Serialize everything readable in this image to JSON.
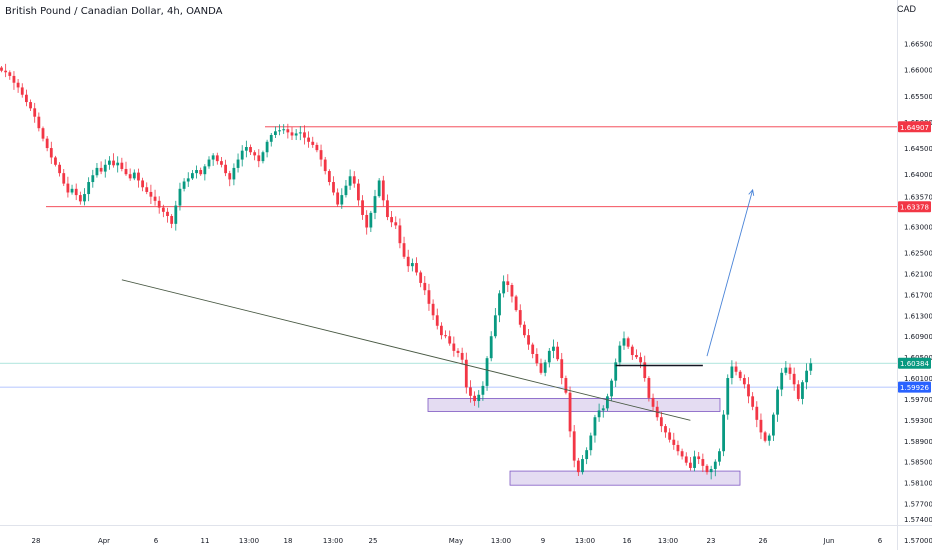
{
  "header": {
    "title": "British Pound / Canadian Dollar, 4h, OANDA",
    "currency": "CAD"
  },
  "chart_data": {
    "type": "candlestick",
    "symbol": "GBPCAD",
    "interval": "4h",
    "ylim": [
      1.5725,
      1.6695
    ],
    "y_ticks": [
      "1.66500",
      "1.66000",
      "1.65500",
      "1.65000",
      "1.64500",
      "1.64000",
      "1.63570",
      "1.63000",
      "1.62500",
      "1.62100",
      "1.61700",
      "1.61300",
      "1.60900",
      "1.60500",
      "1.60100",
      "1.59700",
      "1.59300",
      "1.58900",
      "1.58500",
      "1.58100",
      "1.57700",
      "1.57400",
      "1.57000"
    ],
    "x_ticks": [
      "28",
      "Apr",
      "6",
      "11",
      "13:00",
      "18",
      "13:00",
      "25",
      "May",
      "13:00",
      "9",
      "13:00",
      "16",
      "13:00",
      "23",
      "26",
      "Jun",
      "6"
    ],
    "price_levels": [
      {
        "value": 1.64907,
        "label": "1.64907",
        "color": "#f23645"
      },
      {
        "value": 1.63378,
        "label": "1.63378",
        "color": "#f23645"
      },
      {
        "value": 1.60384,
        "label": "1.60384",
        "color": "#089981"
      },
      {
        "value": 1.59926,
        "label": "1.59926",
        "color": "#2962ff"
      }
    ],
    "zones": [
      {
        "from": 1.5946,
        "to": 1.5971
      },
      {
        "from": 1.5805,
        "to": 1.5832
      }
    ],
    "annotations": [
      {
        "type": "trendline",
        "from": [
          29,
          1.6198
        ],
        "to": [
          166,
          1.5929
        ],
        "color": "#4a5a45"
      },
      {
        "type": "horizontal_segment",
        "from": [
          148,
          1.6034
        ],
        "to": [
          169,
          1.6034
        ],
        "color": "#131722"
      },
      {
        "type": "arrow",
        "from": [
          170,
          1.6052
        ],
        "to": [
          181,
          1.637
        ],
        "color": "#4a84d8"
      }
    ],
    "close_path": [
      1.6598,
      1.6595,
      1.6588,
      1.6575,
      1.6566,
      1.6552,
      1.6538,
      1.6526,
      1.651,
      1.6488,
      1.6468,
      1.645,
      1.6432,
      1.6418,
      1.6402,
      1.6382,
      1.6365,
      1.6372,
      1.636,
      1.6348,
      1.6362,
      1.6385,
      1.6398,
      1.6412,
      1.6405,
      1.6418,
      1.6426,
      1.6417,
      1.6422,
      1.641,
      1.64,
      1.6392,
      1.6403,
      1.6388,
      1.6375,
      1.6366,
      1.6357,
      1.6349,
      1.6336,
      1.6328,
      1.632,
      1.6305,
      1.634,
      1.6372,
      1.6386,
      1.6392,
      1.6402,
      1.6408,
      1.64,
      1.6415,
      1.6428,
      1.6436,
      1.6425,
      1.6418,
      1.6402,
      1.639,
      1.6412,
      1.6428,
      1.6445,
      1.6452,
      1.6442,
      1.6436,
      1.6425,
      1.6442,
      1.6462,
      1.6475,
      1.6482,
      1.6484,
      1.6486,
      1.648,
      1.6474,
      1.6478,
      1.648,
      1.647,
      1.6462,
      1.6456,
      1.6446,
      1.6428,
      1.6406,
      1.6385,
      1.6365,
      1.6342,
      1.636,
      1.6378,
      1.6396,
      1.6382,
      1.635,
      1.6322,
      1.6298,
      1.6326,
      1.6358,
      1.6388,
      1.635,
      1.6318,
      1.6308,
      1.6302,
      1.6268,
      1.6242,
      1.6224,
      1.623,
      1.6212,
      1.6192,
      1.6178,
      1.6152,
      1.613,
      1.611,
      1.6092,
      1.609,
      1.6076,
      1.6062,
      1.6058,
      1.6045,
      1.5992,
      1.5976,
      1.5966,
      1.5978,
      1.5995,
      1.6048,
      1.609,
      1.613,
      1.6172,
      1.6195,
      1.6188,
      1.6166,
      1.614,
      1.6112,
      1.6092,
      1.6074,
      1.6056,
      1.6038,
      1.602,
      1.604,
      1.6062,
      1.607,
      1.6046,
      1.601,
      1.5982,
      1.5908,
      1.5852,
      1.583,
      1.5855,
      1.5872,
      1.59,
      1.5935,
      1.5948,
      1.5952,
      1.5975,
      1.6005,
      1.604,
      1.6072,
      1.6086,
      1.607,
      1.6054,
      1.605,
      1.604,
      1.601,
      1.5972,
      1.5955,
      1.5935,
      1.5918,
      1.5906,
      1.5892,
      1.5882,
      1.587,
      1.586,
      1.5848,
      1.5838,
      1.586,
      1.5855,
      1.5842,
      1.583,
      1.5836,
      1.585,
      1.587,
      1.594,
      1.601,
      1.6032,
      1.6022,
      1.601,
      1.5998,
      1.5975,
      1.5955,
      1.593,
      1.5906,
      1.589,
      1.59,
      1.594,
      1.5988,
      1.602,
      1.603,
      1.6018,
      1.5998,
      1.597,
      1.6002,
      1.6024,
      1.6038
    ]
  }
}
